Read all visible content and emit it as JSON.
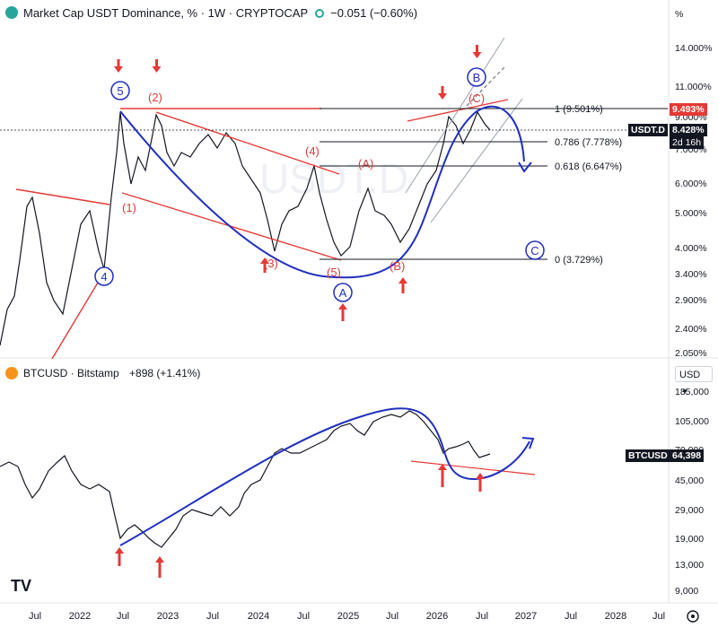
{
  "top_panel": {
    "title": "Market Cap USDT Dominance, % · 1W · CRYPTOCAP",
    "change": "−0.051 (−0.60%)",
    "scale_unit": "%",
    "y_ticks": [
      "14.000%",
      "11.000%",
      "9.000%",
      "7.000%",
      "6.000%",
      "5.000%",
      "4.000%",
      "3.400%",
      "2.900%",
      "2.400%",
      "2.050%"
    ],
    "price_tag": "8.428%",
    "price_tag_symbol": "USDT.D",
    "countdown": "2d 16h",
    "high_tag": "9.493%",
    "fib_levels": [
      {
        "label": "1 (9.501%)",
        "value": 9.501
      },
      {
        "label": "0.786 (7.778%)",
        "value": 7.778
      },
      {
        "label": "0.618 (6.647%)",
        "value": 6.647
      },
      {
        "label": "0 (3.729%)",
        "value": 3.729
      }
    ],
    "wave_labels": {
      "w5_circle": "5",
      "w4_circle": "4",
      "wA_circle": "A",
      "wB_circle": "B",
      "wC_circle": "C",
      "p1": "(1)",
      "p2": "(2)",
      "p3": "(3)",
      "p4": "(4)",
      "p5": "(5)",
      "pA": "(A)",
      "pB": "(B)",
      "pC": "(C)"
    },
    "watermark": "USDT.D"
  },
  "bottom_panel": {
    "title": "BTCUSD · Bitstamp",
    "change": "+898 (+1.41%)",
    "currency": "USD",
    "y_ticks": [
      "185,000",
      "105,000",
      "70,000",
      "45,000",
      "29,000",
      "19,000",
      "13,000",
      "9,000"
    ],
    "price_tag_symbol": "BTCUSD",
    "price_tag": "64,398"
  },
  "x_axis": [
    "Jul",
    "2022",
    "Jul",
    "2023",
    "Jul",
    "2024",
    "Jul",
    "2025",
    "Jul",
    "2026",
    "Jul",
    "2027",
    "Jul",
    "2028",
    "Jul"
  ],
  "colors": {
    "red": "#e53935",
    "blue": "#1f2fbf",
    "price": "#131722",
    "grid": "#f0f3fa"
  },
  "chart_data": [
    {
      "type": "line",
      "title": "Market Cap USDT Dominance, % · 1W · CRYPTOCAP",
      "series": [
        {
          "values": [
            1.9,
            3.6,
            5.5,
            6.8,
            3.4,
            9.4,
            6.2,
            9.2,
            7.4,
            8.6,
            6.2,
            4.0,
            6.2,
            3.8,
            5.8,
            4.0,
            7.2,
            9.3,
            8.4
          ]
        }
      ],
      "ylim": [
        2.0,
        15.0
      ],
      "scale": "log"
    },
    {
      "type": "line",
      "title": "BTCUSD · Bitstamp",
      "series": [
        {
          "values": [
            48000,
            60000,
            35000,
            20000,
            16000,
            23000,
            26000,
            38000,
            68000,
            58000,
            72000,
            100000,
            90000,
            108000,
            118000,
            100000,
            70000,
            78000,
            64398
          ]
        }
      ],
      "ylim": [
        9000,
        185000
      ],
      "scale": "log"
    }
  ]
}
